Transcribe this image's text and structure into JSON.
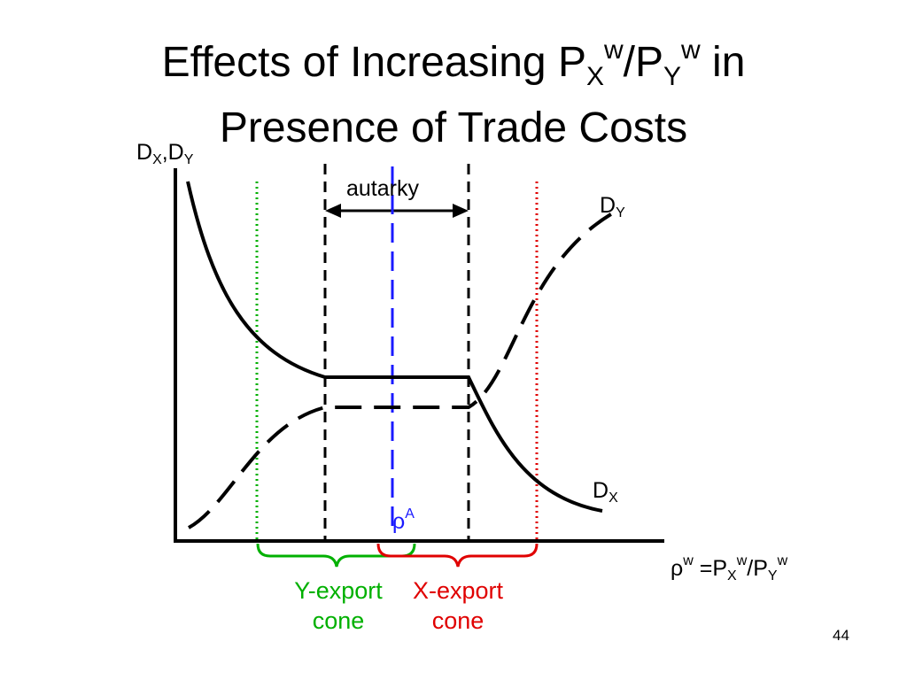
{
  "title": {
    "part1": "Effects of Increasing P",
    "sub1": "X",
    "sup1": "w",
    "slash": "/P",
    "sub2": "Y",
    "sup2": "w",
    "part2": " in",
    "line2": "Presence of Trade Costs"
  },
  "y_axis_label": {
    "d1": "D",
    "s1": "X",
    "mid": ",D",
    "s2": "Y"
  },
  "curve_labels": {
    "dy": {
      "main": "D",
      "sub": "Y"
    },
    "dx": {
      "main": "D",
      "sub": "X"
    }
  },
  "autarky_label": "autarky",
  "rhoA_label": {
    "main": "ρ",
    "sup": "A"
  },
  "x_axis_label": {
    "rho": "ρ",
    "rho_sup": "w",
    "eq": " =P",
    "s1": "X",
    "sup1": "w",
    "slash": "/P",
    "s2": "Y",
    "sup2": "w"
  },
  "cones": {
    "y_export": {
      "line1": "Y-export",
      "line2": "cone",
      "color": "#00b000"
    },
    "x_export": {
      "line1": "X-export",
      "line2": "cone",
      "color": "#e00000"
    }
  },
  "colors": {
    "rhoA": "#1a1aff",
    "axis": "#000000"
  },
  "page_number": "44"
}
